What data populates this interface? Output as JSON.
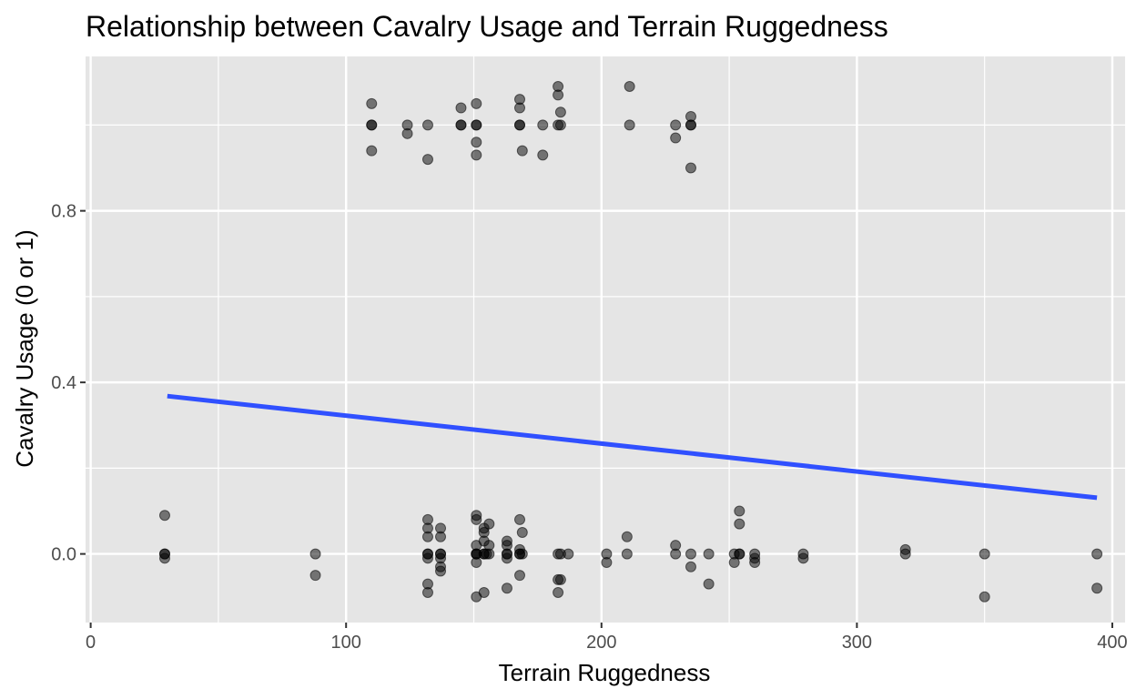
{
  "chart_data": {
    "type": "scatter",
    "title": "Relationship between Cavalry Usage and Terrain Ruggedness",
    "xlabel": "Terrain Ruggedness",
    "ylabel": "Cavalry Usage (0 or 1)",
    "xlim": [
      -2,
      405
    ],
    "ylim": [
      -0.16,
      1.16
    ],
    "x_ticks": [
      0,
      100,
      200,
      300,
      400
    ],
    "x_tick_labels": [
      "0",
      "100",
      "200",
      "300",
      "400"
    ],
    "y_ticks": [
      0.0,
      0.4,
      0.8
    ],
    "y_tick_labels": [
      "0.0",
      "0.4",
      "0.8"
    ],
    "grid": true,
    "legend": "none",
    "colors": {
      "panel": "#e5e5e5",
      "grid": "#ffffff",
      "points": "#000000",
      "fit_line": "#3050ff"
    },
    "series": [
      {
        "type": "scatter",
        "points": [
          [
            29,
            0.0
          ],
          [
            29,
            0.0
          ],
          [
            29,
            -0.01
          ],
          [
            29,
            0.09
          ],
          [
            88,
            0.0
          ],
          [
            88,
            -0.05
          ],
          [
            110,
            1.0
          ],
          [
            110,
            1.0
          ],
          [
            110,
            1.05
          ],
          [
            110,
            0.94
          ],
          [
            124,
            1.0
          ],
          [
            124,
            0.98
          ],
          [
            132,
            1.0
          ],
          [
            132,
            0.92
          ],
          [
            132,
            0.0
          ],
          [
            132,
            0.0
          ],
          [
            132,
            -0.01
          ],
          [
            132,
            0.04
          ],
          [
            132,
            0.06
          ],
          [
            132,
            0.08
          ],
          [
            132,
            -0.07
          ],
          [
            132,
            -0.09
          ],
          [
            137,
            0.0
          ],
          [
            137,
            0.0
          ],
          [
            137,
            -0.01
          ],
          [
            137,
            0.04
          ],
          [
            137,
            0.06
          ],
          [
            137,
            -0.03
          ],
          [
            137,
            -0.04
          ],
          [
            145,
            1.0
          ],
          [
            145,
            1.0
          ],
          [
            145,
            1.04
          ],
          [
            151,
            1.0
          ],
          [
            151,
            1.0
          ],
          [
            151,
            0.96
          ],
          [
            151,
            0.93
          ],
          [
            151,
            1.05
          ],
          [
            151,
            0.0
          ],
          [
            151,
            0.0
          ],
          [
            151,
            0.0
          ],
          [
            151,
            -0.02
          ],
          [
            151,
            0.02
          ],
          [
            151,
            0.08
          ],
          [
            151,
            0.09
          ],
          [
            151,
            -0.1
          ],
          [
            154,
            0.0
          ],
          [
            154,
            0.0
          ],
          [
            154,
            0.03
          ],
          [
            154,
            0.05
          ],
          [
            154,
            0.06
          ],
          [
            154,
            -0.09
          ],
          [
            155,
            0.0
          ],
          [
            156,
            0.0
          ],
          [
            156,
            0.07
          ],
          [
            156,
            0.02
          ],
          [
            163,
            0.0
          ],
          [
            163,
            0.0
          ],
          [
            163,
            0.02
          ],
          [
            163,
            0.03
          ],
          [
            163,
            -0.01
          ],
          [
            163,
            -0.08
          ],
          [
            168,
            1.0
          ],
          [
            168,
            1.0
          ],
          [
            168,
            1.04
          ],
          [
            168,
            1.06
          ],
          [
            168,
            0.0
          ],
          [
            168,
            0.0
          ],
          [
            168,
            0.01
          ],
          [
            168,
            0.08
          ],
          [
            168,
            -0.05
          ],
          [
            169,
            0.94
          ],
          [
            169,
            0.05
          ],
          [
            169,
            0.0
          ],
          [
            177,
            1.0
          ],
          [
            177,
            0.93
          ],
          [
            183,
            1.0
          ],
          [
            183,
            1.07
          ],
          [
            183,
            1.09
          ],
          [
            183,
            0.0
          ],
          [
            183,
            -0.06
          ],
          [
            183,
            -0.09
          ],
          [
            184,
            1.0
          ],
          [
            184,
            1.03
          ],
          [
            184,
            0.0
          ],
          [
            184,
            -0.06
          ],
          [
            187,
            0.0
          ],
          [
            202,
            0.0
          ],
          [
            202,
            -0.02
          ],
          [
            210,
            0.0
          ],
          [
            210,
            0.04
          ],
          [
            211,
            1.0
          ],
          [
            211,
            1.09
          ],
          [
            229,
            1.0
          ],
          [
            229,
            0.97
          ],
          [
            229,
            0.0
          ],
          [
            229,
            0.02
          ],
          [
            235,
            1.0
          ],
          [
            235,
            1.0
          ],
          [
            235,
            1.02
          ],
          [
            235,
            0.9
          ],
          [
            235,
            0.0
          ],
          [
            235,
            -0.03
          ],
          [
            242,
            0.0
          ],
          [
            242,
            -0.07
          ],
          [
            252,
            0.0
          ],
          [
            252,
            -0.02
          ],
          [
            254,
            0.0
          ],
          [
            254,
            0.0
          ],
          [
            254,
            0.07
          ],
          [
            254,
            0.1
          ],
          [
            260,
            0.0
          ],
          [
            260,
            -0.01
          ],
          [
            260,
            -0.02
          ],
          [
            279,
            0.0
          ],
          [
            279,
            -0.01
          ],
          [
            319,
            0.0
          ],
          [
            319,
            0.01
          ],
          [
            350,
            0.0
          ],
          [
            350,
            -0.1
          ],
          [
            394,
            0.0
          ],
          [
            394,
            -0.08
          ]
        ]
      },
      {
        "type": "line",
        "x": [
          30,
          394
        ],
        "y": [
          0.368,
          0.131
        ]
      }
    ]
  }
}
